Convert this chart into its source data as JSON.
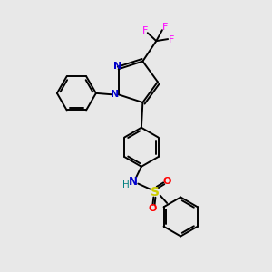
{
  "background_color": "#e8e8e8",
  "bond_color": "#000000",
  "n_color": "#0000cc",
  "s_color": "#cccc00",
  "o_color": "#ff0000",
  "f_color": "#ff00ff",
  "h_color": "#008080",
  "figsize": [
    3.0,
    3.0
  ],
  "dpi": 100,
  "xlim": [
    0,
    10
  ],
  "ylim": [
    0,
    10
  ],
  "lw": 1.4,
  "fs": 8.0,
  "ring_r": 0.72
}
